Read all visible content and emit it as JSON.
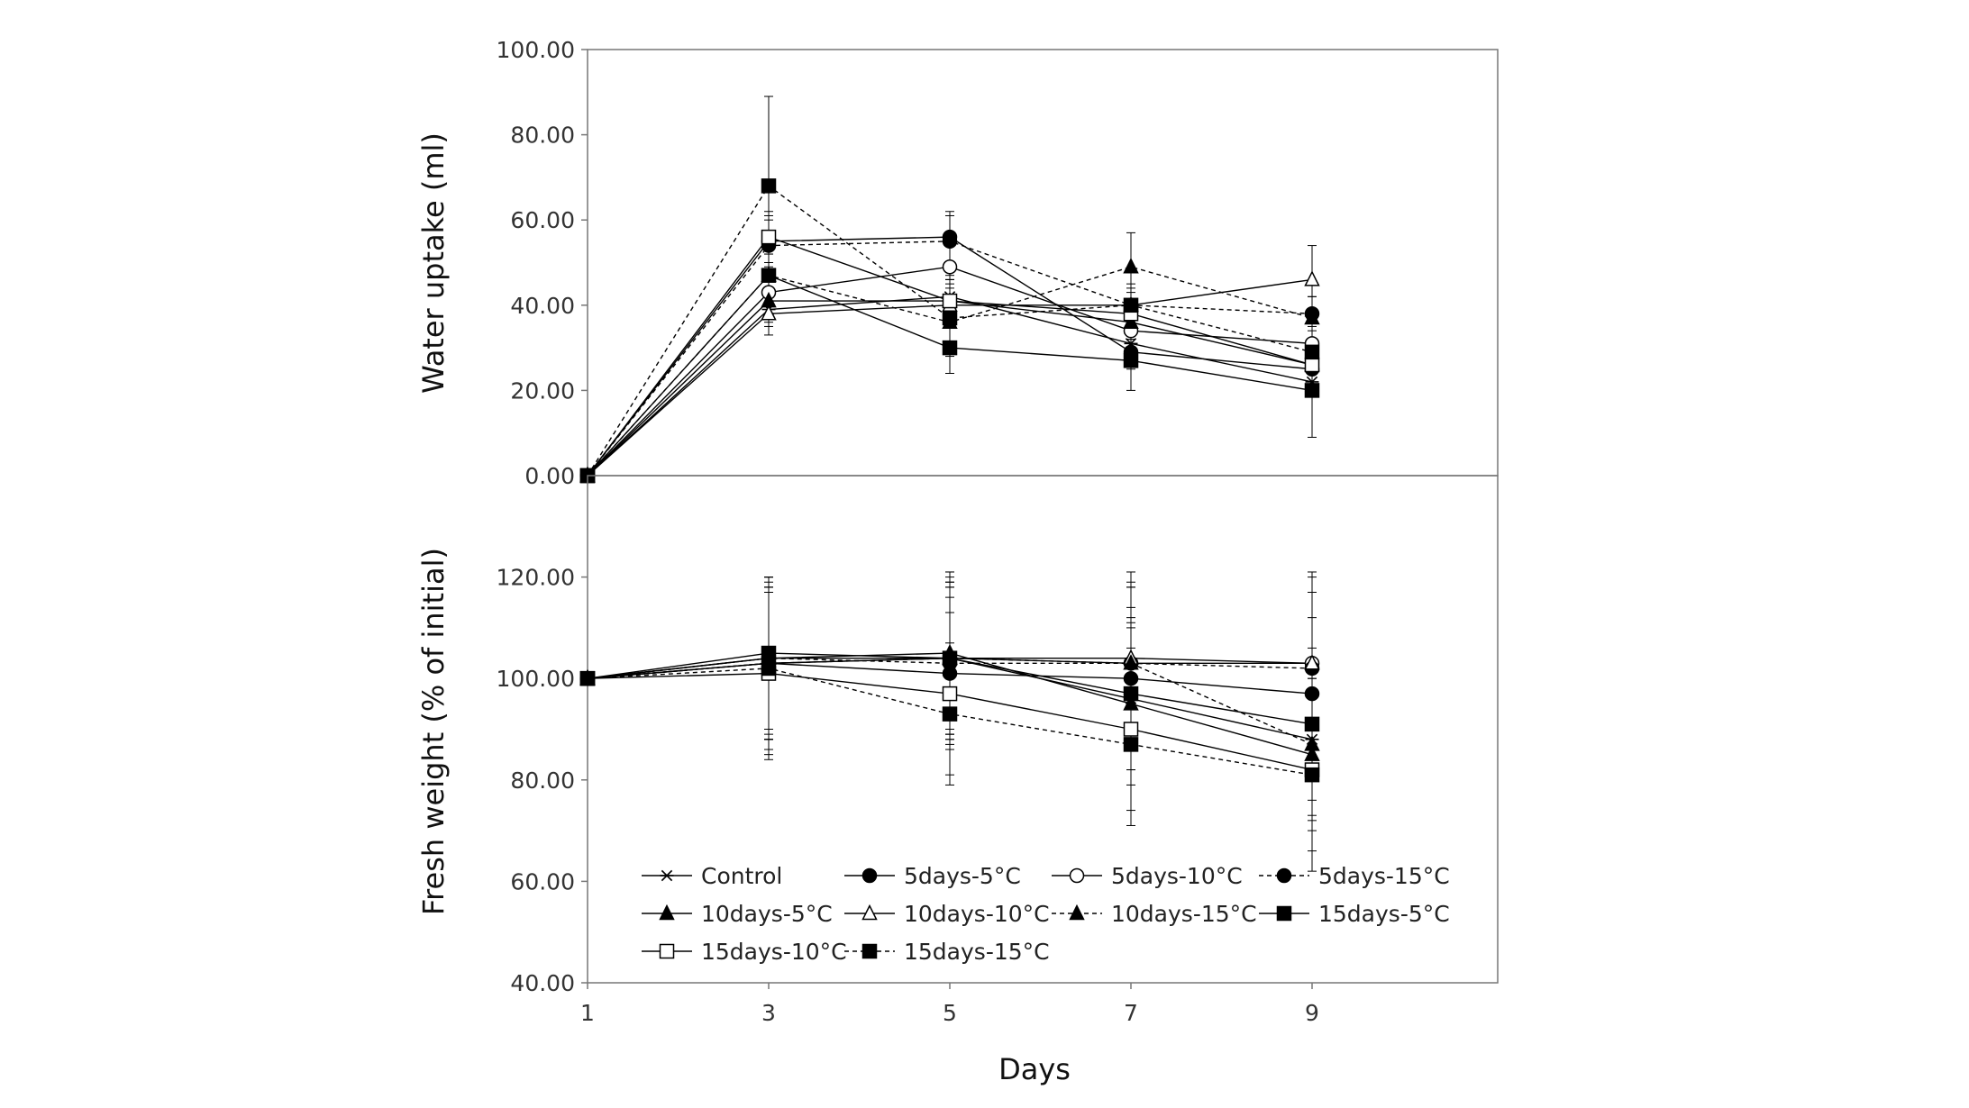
{
  "chart_data": [
    {
      "type": "line",
      "panel": "top",
      "ylabel": "Water uptake (ml)",
      "ylim": [
        0,
        100
      ],
      "yticks": [
        "0.00",
        "20.00",
        "40.00",
        "60.00",
        "80.00",
        "100.00"
      ],
      "x": [
        1,
        3,
        5,
        7,
        9
      ],
      "series": [
        {
          "name": "Control",
          "marker": "star",
          "dash": false,
          "values": [
            0,
            39,
            42,
            31,
            22
          ],
          "errors": [
            0,
            4,
            4,
            3,
            3
          ]
        },
        {
          "name": "5days-5°C",
          "marker": "circle-filled",
          "dash": false,
          "values": [
            0,
            55,
            56,
            29,
            25
          ],
          "errors": [
            0,
            6,
            6,
            4,
            4
          ]
        },
        {
          "name": "5days-10°C",
          "marker": "circle-open",
          "dash": false,
          "values": [
            0,
            43,
            49,
            34,
            31
          ],
          "errors": [
            0,
            5,
            5,
            4,
            4
          ]
        },
        {
          "name": "5days-15°C",
          "marker": "circle-filled",
          "dash": true,
          "values": [
            0,
            54,
            55,
            40,
            38
          ],
          "errors": [
            0,
            6,
            6,
            4,
            4
          ]
        },
        {
          "name": "10days-5°C",
          "marker": "triangle-filled",
          "dash": false,
          "values": [
            0,
            41,
            41,
            36,
            26
          ],
          "errors": [
            0,
            5,
            5,
            4,
            4
          ]
        },
        {
          "name": "10days-10°C",
          "marker": "triangle-open",
          "dash": false,
          "values": [
            0,
            38,
            40,
            40,
            46
          ],
          "errors": [
            0,
            5,
            5,
            5,
            8
          ]
        },
        {
          "name": "10days-15°C",
          "marker": "triangle-filled",
          "dash": true,
          "values": [
            0,
            47,
            36,
            49,
            37
          ],
          "errors": [
            0,
            5,
            5,
            8,
            5
          ]
        },
        {
          "name": "15days-5°C",
          "marker": "square-filled",
          "dash": false,
          "values": [
            0,
            47,
            30,
            27,
            20
          ],
          "errors": [
            0,
            5,
            6,
            7,
            11
          ]
        },
        {
          "name": "15days-10°C",
          "marker": "square-open",
          "dash": false,
          "values": [
            0,
            56,
            41,
            38,
            26
          ],
          "errors": [
            0,
            6,
            6,
            5,
            5
          ]
        },
        {
          "name": "15days-15°C",
          "marker": "square-filled",
          "dash": true,
          "values": [
            0,
            68,
            37,
            40,
            29
          ],
          "errors": [
            0,
            21,
            9,
            8,
            8
          ]
        }
      ]
    },
    {
      "type": "line",
      "panel": "bottom",
      "xlabel": "Days",
      "ylabel": "Fresh weight (% of initial)",
      "ylim": [
        40,
        140
      ],
      "yticks": [
        "40.00",
        "60.00",
        "80.00",
        "100.00",
        "120.00"
      ],
      "xticks": [
        "1",
        "3",
        "5",
        "7",
        "9"
      ],
      "x": [
        1,
        3,
        5,
        7,
        9
      ],
      "legend_position": "lower-left inside",
      "series": [
        {
          "name": "Control",
          "marker": "star",
          "dash": false,
          "values": [
            100,
            103,
            104,
            96,
            88
          ],
          "errors": [
            0,
            15,
            14,
            14,
            15
          ]
        },
        {
          "name": "5days-5°C",
          "marker": "circle-filled",
          "dash": false,
          "values": [
            100,
            103,
            101,
            100,
            97
          ],
          "errors": [
            0,
            15,
            15,
            14,
            15
          ]
        },
        {
          "name": "5days-10°C",
          "marker": "circle-open",
          "dash": false,
          "values": [
            100,
            104,
            104,
            103,
            103
          ],
          "errors": [
            0,
            16,
            16,
            16,
            18
          ]
        },
        {
          "name": "5days-15°C",
          "marker": "circle-filled",
          "dash": true,
          "values": [
            100,
            104,
            103,
            103,
            102
          ],
          "errors": [
            0,
            15,
            15,
            15,
            15
          ]
        },
        {
          "name": "10days-5°C",
          "marker": "triangle-filled",
          "dash": false,
          "values": [
            100,
            104,
            105,
            95,
            85
          ],
          "errors": [
            0,
            16,
            16,
            16,
            15
          ]
        },
        {
          "name": "10days-10°C",
          "marker": "triangle-open",
          "dash": false,
          "values": [
            100,
            103,
            104,
            104,
            103
          ],
          "errors": [
            0,
            17,
            17,
            17,
            17
          ]
        },
        {
          "name": "10days-15°C",
          "marker": "triangle-filled",
          "dash": true,
          "values": [
            100,
            103,
            104,
            103,
            87
          ],
          "errors": [
            0,
            15,
            15,
            15,
            15
          ]
        },
        {
          "name": "15days-5°C",
          "marker": "square-filled",
          "dash": false,
          "values": [
            100,
            105,
            104,
            97,
            91
          ],
          "errors": [
            0,
            15,
            15,
            15,
            15
          ]
        },
        {
          "name": "15days-10°C",
          "marker": "square-open",
          "dash": false,
          "values": [
            100,
            101,
            97,
            90,
            82
          ],
          "errors": [
            0,
            16,
            16,
            16,
            16
          ]
        },
        {
          "name": "15days-15°C",
          "marker": "square-filled",
          "dash": true,
          "values": [
            100,
            102,
            93,
            87,
            81
          ],
          "errors": [
            0,
            18,
            14,
            16,
            19
          ]
        }
      ]
    }
  ]
}
